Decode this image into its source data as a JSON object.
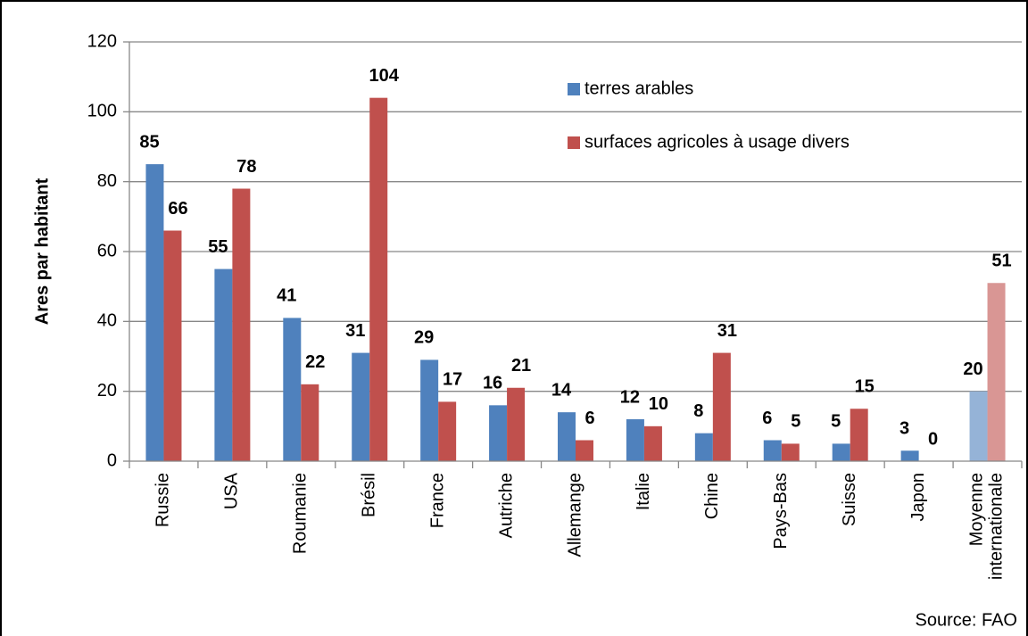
{
  "chart_data": {
    "type": "bar",
    "y_label": "Ares par habitant",
    "source": "Source: FAO",
    "categories": [
      "Russie",
      "USA",
      "Roumanie",
      "Brésil",
      "France",
      "Autriche",
      "Allemange",
      "Italie",
      "Chine",
      "Pays-Bas",
      "Suisse",
      "Japon",
      "Moyenne internationale"
    ],
    "series": [
      {
        "name": "terres arables",
        "color": "#4f81bd",
        "colors": [
          "#4f81bd",
          "#4f81bd",
          "#4f81bd",
          "#4f81bd",
          "#4f81bd",
          "#4f81bd",
          "#4f81bd",
          "#4f81bd",
          "#4f81bd",
          "#4f81bd",
          "#4f81bd",
          "#4f81bd",
          "#95b3d7"
        ],
        "values": [
          85,
          55,
          41,
          31,
          29,
          16,
          14,
          12,
          8,
          6,
          5,
          3,
          20
        ]
      },
      {
        "name": "surfaces agricoles à usage divers",
        "color": "#c0504d",
        "colors": [
          "#c0504d",
          "#c0504d",
          "#c0504d",
          "#c0504d",
          "#c0504d",
          "#c0504d",
          "#c0504d",
          "#c0504d",
          "#c0504d",
          "#c0504d",
          "#c0504d",
          "#c0504d",
          "#d99694"
        ],
        "values": [
          66,
          78,
          22,
          104,
          17,
          21,
          6,
          10,
          31,
          5,
          15,
          0,
          51
        ]
      }
    ],
    "ylim": [
      0,
      120
    ],
    "yticks": [
      0,
      20,
      40,
      60,
      80,
      100,
      120
    ],
    "grid": true,
    "legend": "top-center"
  }
}
